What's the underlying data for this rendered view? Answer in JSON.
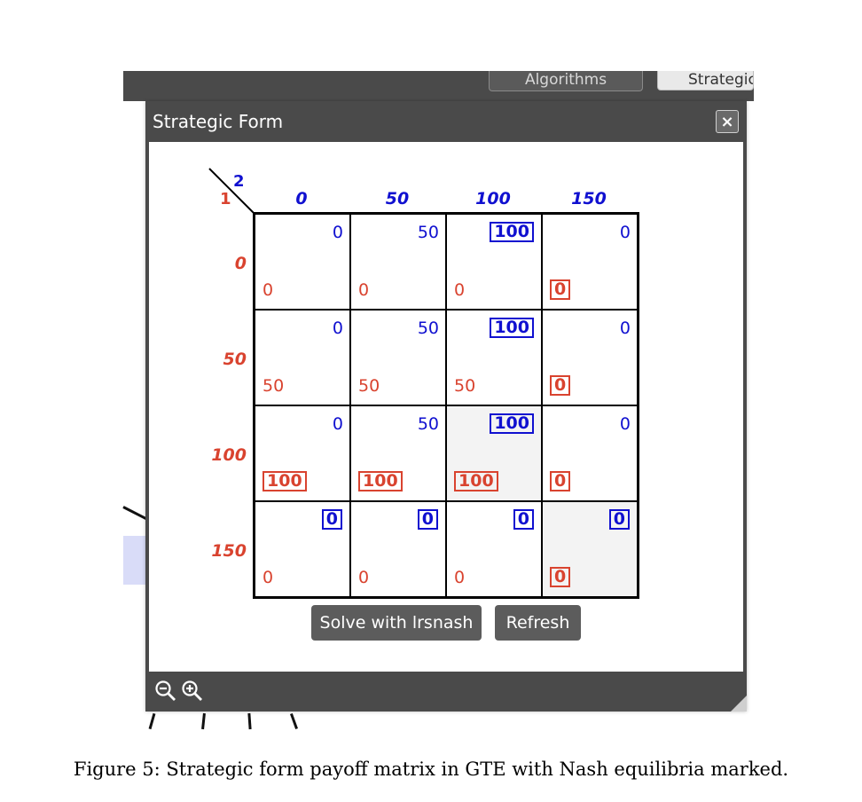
{
  "tabs": {
    "algorithms": "Algorithms",
    "strategic": "Strategic"
  },
  "window": {
    "title": "Strategic Form",
    "close_label": "×"
  },
  "players": {
    "row_player": "1",
    "col_player": "2"
  },
  "colors": {
    "player1": "#d9432f",
    "player2": "#1010d0",
    "chrome": "#4a4a4a"
  },
  "matrix": {
    "col_labels": [
      "0",
      "50",
      "100",
      "150"
    ],
    "row_labels": [
      "0",
      "50",
      "100",
      "150"
    ],
    "rows": [
      [
        {
          "p1": "0",
          "p2": "0"
        },
        {
          "p1": "0",
          "p2": "50"
        },
        {
          "p1": "0",
          "p2": "100",
          "p2_best": true
        },
        {
          "p1": "0",
          "p1_best": true,
          "p2": "0"
        }
      ],
      [
        {
          "p1": "50",
          "p2": "0"
        },
        {
          "p1": "50",
          "p2": "50"
        },
        {
          "p1": "50",
          "p2": "100",
          "p2_best": true
        },
        {
          "p1": "0",
          "p1_best": true,
          "p2": "0"
        }
      ],
      [
        {
          "p1": "100",
          "p1_best": true,
          "p2": "0"
        },
        {
          "p1": "100",
          "p1_best": true,
          "p2": "50"
        },
        {
          "p1": "100",
          "p1_best": true,
          "p2": "100",
          "p2_best": true,
          "equilibrium": true
        },
        {
          "p1": "0",
          "p1_best": true,
          "p2": "0"
        }
      ],
      [
        {
          "p1": "0",
          "p2": "0",
          "p2_best": true
        },
        {
          "p1": "0",
          "p2": "0",
          "p2_best": true
        },
        {
          "p1": "0",
          "p2": "0",
          "p2_best": true
        },
        {
          "p1": "0",
          "p1_best": true,
          "p2": "0",
          "p2_best": true,
          "equilibrium": true
        }
      ]
    ]
  },
  "buttons": {
    "solve": "Solve with lrsnash",
    "refresh": "Refresh"
  },
  "footer": {
    "zoom_out_icon": "zoom-out-icon",
    "zoom_in_icon": "zoom-in-icon"
  },
  "caption": "Figure 5: Strategic form payoff matrix in GTE with Nash equilibria marked."
}
